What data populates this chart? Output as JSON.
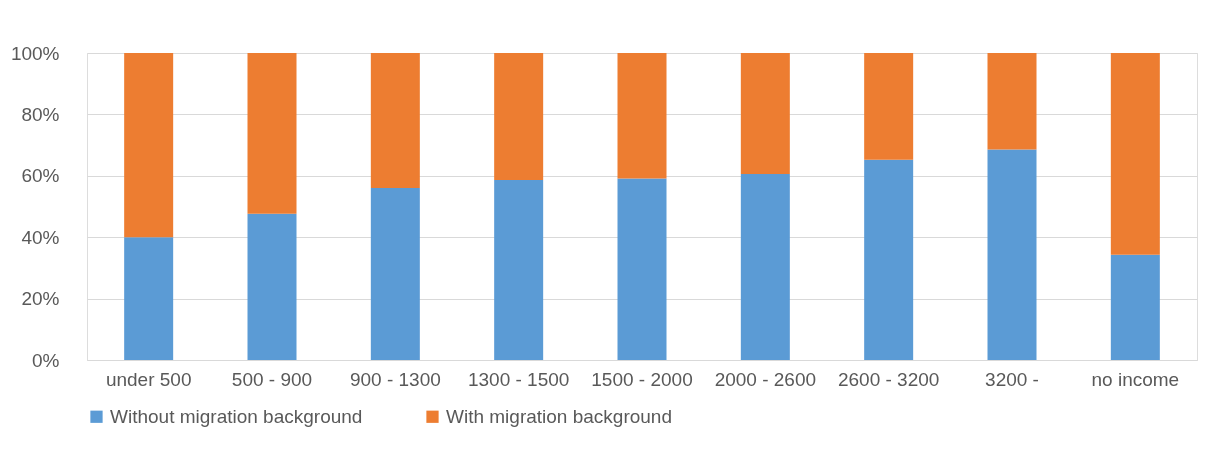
{
  "chart_data": {
    "type": "bar",
    "stacked": true,
    "categories": [
      "under 500",
      "500 - 900",
      "900 - 1300",
      "1300 - 1500",
      "1500 - 2000",
      "2000 - 2600",
      "2600 - 3200",
      "3200 -",
      "no income"
    ],
    "series": [
      {
        "name": "Without migration background",
        "color": "#5b9bd5",
        "values": [
          40,
          47.6,
          56,
          58.6,
          59.1,
          60.6,
          65.2,
          68.6,
          34.3
        ]
      },
      {
        "name": "With migration background",
        "color": "#ed7d31",
        "values": [
          60,
          52.4,
          44,
          41.4,
          40.9,
          39.4,
          34.8,
          31.4,
          65.7
        ]
      }
    ],
    "ylim": [
      0,
      100
    ],
    "yticks": [
      {
        "value": 0,
        "label": "0%"
      },
      {
        "value": 20,
        "label": "20%"
      },
      {
        "value": 40,
        "label": "40%"
      },
      {
        "value": 60,
        "label": "60%"
      },
      {
        "value": 80,
        "label": "80%"
      },
      {
        "value": 100,
        "label": "100%"
      }
    ],
    "grid": "y",
    "legend": "bottom"
  }
}
